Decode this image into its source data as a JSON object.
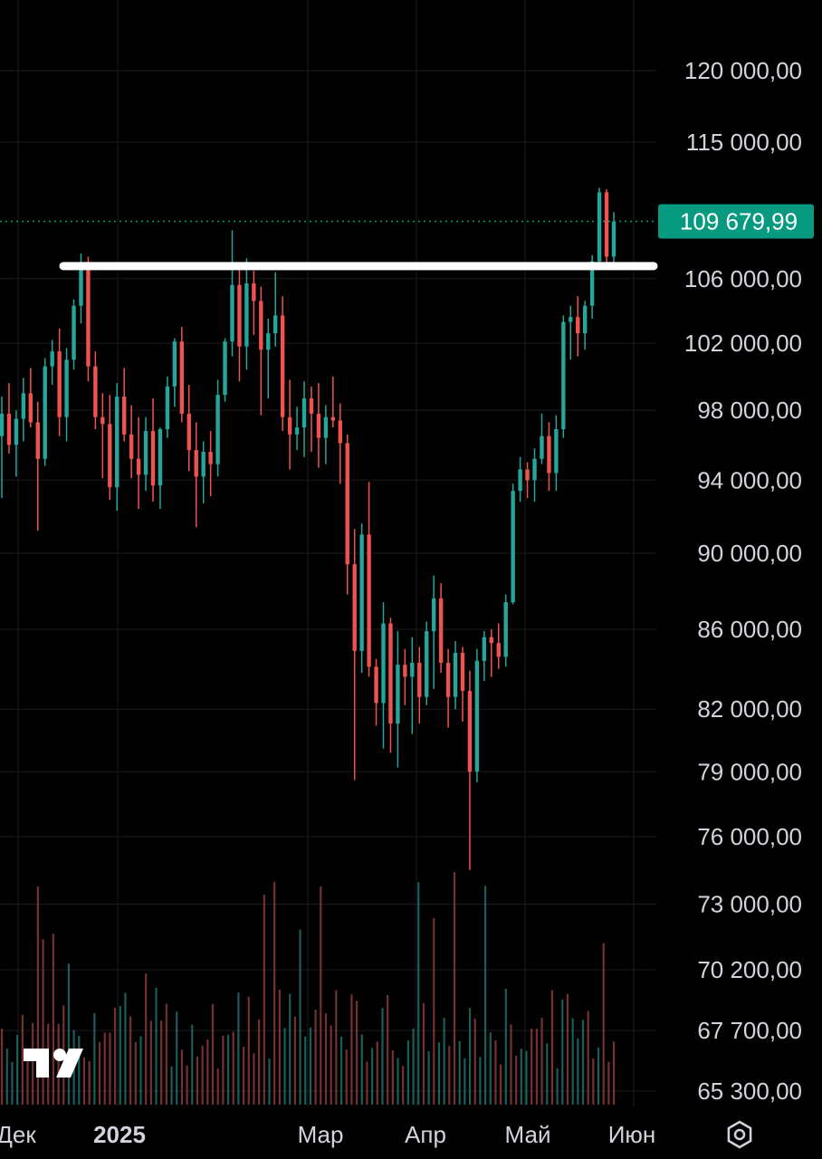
{
  "chart_data": {
    "type": "candlestick",
    "y_scale": "log",
    "y_ticks": [
      "120 000,00",
      "115 000,00",
      "106 000,00",
      "102 000,00",
      "98 000,00",
      "94 000,00",
      "90 000,00",
      "86 000,00",
      "82 000,00",
      "79 000,00",
      "76 000,00",
      "73 000,00",
      "70 200,00",
      "67 700,00",
      "65 300,00"
    ],
    "y_tick_values": [
      120000,
      115000,
      106000,
      102000,
      98000,
      94000,
      90000,
      86000,
      82000,
      79000,
      76000,
      73000,
      70200,
      67700,
      65300
    ],
    "x_ticks": [
      "Дек",
      "2025",
      "Мар",
      "Апр",
      "Май",
      "Июн"
    ],
    "current_price": 109679.99,
    "current_price_label": "109 679,99",
    "horizontal_line": 106800,
    "colors": {
      "up": "#26a69a",
      "down": "#ef5350",
      "current": "#089981",
      "line": "#ffffff",
      "grid": "#1c1c1c"
    },
    "candles": [
      [
        96500,
        98800,
        93000,
        97800
      ],
      [
        97800,
        99600,
        95500,
        96000
      ],
      [
        96000,
        98000,
        94200,
        97500
      ],
      [
        97500,
        99900,
        96200,
        99000
      ],
      [
        99000,
        100500,
        97000,
        97300
      ],
      [
        97300,
        98500,
        91200,
        95200
      ],
      [
        95200,
        101100,
        94800,
        100600
      ],
      [
        100600,
        102200,
        99500,
        101500
      ],
      [
        101500,
        102900,
        96500,
        97600
      ],
      [
        97600,
        101700,
        96200,
        101000
      ],
      [
        101000,
        104700,
        100400,
        104300
      ],
      [
        104300,
        107600,
        103200,
        106800
      ],
      [
        106800,
        107400,
        99700,
        100600
      ],
      [
        100600,
        101500,
        96900,
        97600
      ],
      [
        97600,
        99000,
        94100,
        97200
      ],
      [
        97200,
        98900,
        92900,
        93600
      ],
      [
        93600,
        99600,
        92300,
        98800
      ],
      [
        98800,
        100500,
        96200,
        96600
      ],
      [
        96600,
        98300,
        94100,
        95200
      ],
      [
        95200,
        97600,
        92400,
        94300
      ],
      [
        94300,
        97600,
        93400,
        96800
      ],
      [
        96800,
        98700,
        92800,
        93700
      ],
      [
        93700,
        97000,
        92400,
        96900
      ],
      [
        96900,
        100000,
        96400,
        99400
      ],
      [
        99400,
        102300,
        98200,
        102100
      ],
      [
        102100,
        103000,
        97300,
        97800
      ],
      [
        97800,
        99500,
        94500,
        95700
      ],
      [
        95700,
        97300,
        91400,
        94200
      ],
      [
        94200,
        96200,
        92700,
        95600
      ],
      [
        95600,
        96800,
        93100,
        94900
      ],
      [
        94900,
        99800,
        94200,
        98900
      ],
      [
        98900,
        102300,
        98500,
        102100
      ],
      [
        102100,
        109100,
        101200,
        105600
      ],
      [
        105600,
        106600,
        99700,
        101800
      ],
      [
        101800,
        107300,
        100400,
        105700
      ],
      [
        105700,
        106500,
        102500,
        104600
      ],
      [
        104600,
        105500,
        97700,
        101600
      ],
      [
        101600,
        103500,
        98700,
        102600
      ],
      [
        102600,
        106400,
        101800,
        103700
      ],
      [
        103700,
        104900,
        96800,
        97600
      ],
      [
        97600,
        99800,
        94600,
        96600
      ],
      [
        96600,
        98200,
        95700,
        97000
      ],
      [
        97000,
        99700,
        95300,
        98700
      ],
      [
        98700,
        99400,
        95600,
        97800
      ],
      [
        97800,
        99600,
        94700,
        96400
      ],
      [
        96400,
        98300,
        94900,
        97600
      ],
      [
        97600,
        100000,
        97000,
        97400
      ],
      [
        97400,
        98400,
        93800,
        96100
      ],
      [
        96100,
        96600,
        87800,
        89400
      ],
      [
        89400,
        91300,
        78600,
        84900
      ],
      [
        84900,
        91600,
        83800,
        91000
      ],
      [
        91000,
        93900,
        83600,
        84100
      ],
      [
        84100,
        84500,
        81200,
        82300
      ],
      [
        82300,
        87400,
        80100,
        86300
      ],
      [
        86300,
        86600,
        79900,
        81300
      ],
      [
        81300,
        85900,
        79200,
        84200
      ],
      [
        84200,
        85000,
        82200,
        83600
      ],
      [
        83600,
        85600,
        80800,
        84300
      ],
      [
        84300,
        85100,
        81300,
        82600
      ],
      [
        82600,
        86400,
        82200,
        85900
      ],
      [
        85900,
        88800,
        83000,
        87600
      ],
      [
        87600,
        88400,
        83800,
        84300
      ],
      [
        84300,
        85000,
        81100,
        82600
      ],
      [
        82600,
        85400,
        82000,
        84800
      ],
      [
        84800,
        85100,
        81400,
        82900
      ],
      [
        82900,
        83900,
        74500,
        79000
      ],
      [
        79000,
        85000,
        78500,
        84400
      ],
      [
        84400,
        85900,
        83400,
        85600
      ],
      [
        85600,
        86000,
        83600,
        85300
      ],
      [
        85300,
        86300,
        84000,
        84600
      ],
      [
        84600,
        87800,
        84100,
        87400
      ],
      [
        87400,
        93800,
        87300,
        93400
      ],
      [
        93400,
        95300,
        92800,
        94600
      ],
      [
        94600,
        95000,
        93000,
        94000
      ],
      [
        94000,
        95800,
        92800,
        95200
      ],
      [
        95200,
        97800,
        94900,
        96500
      ],
      [
        96500,
        97300,
        93400,
        94400
      ],
      [
        94400,
        97700,
        93400,
        96900
      ],
      [
        96900,
        103700,
        96400,
        103300
      ],
      [
        103300,
        104300,
        101000,
        103600
      ],
      [
        103600,
        104900,
        101200,
        102600
      ],
      [
        102600,
        104600,
        101600,
        104300
      ],
      [
        104300,
        107500,
        103500,
        107100
      ],
      [
        107100,
        111900,
        106800,
        111600
      ],
      [
        111600,
        111800,
        107000,
        107400
      ],
      [
        107400,
        110300,
        106800,
        109680
      ]
    ],
    "volume_bars": 120
  }
}
